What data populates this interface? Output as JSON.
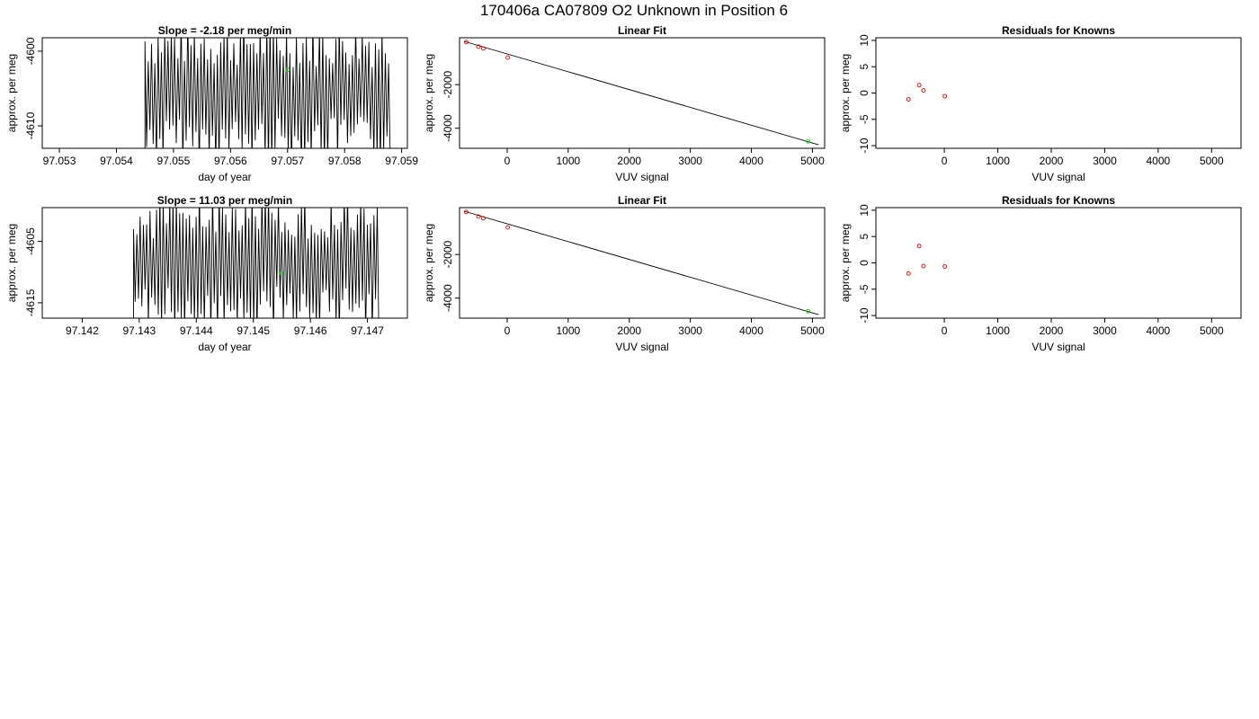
{
  "page_title": "170406a      CA07809   O2 Unknown in Position  6",
  "colors": {
    "line": "#000000",
    "known_points": "#cc0000",
    "unknown_point": "#22cc22",
    "background": "#ffffff"
  },
  "chart_data": [
    {
      "type": "line",
      "title": "Slope =  -2.18  per meg/min",
      "xlabel": "day of year",
      "ylabel": "approx. per meg",
      "xlim": [
        97.0527,
        97.0591
      ],
      "ylim": [
        -4613.0,
        -4598.2
      ],
      "xticks": [
        "97.053",
        "97.054",
        "97.055",
        "97.056",
        "97.057",
        "97.058",
        "97.059"
      ],
      "xtick_values": [
        97.053,
        97.054,
        97.055,
        97.056,
        97.057,
        97.058,
        97.059
      ],
      "yticks": [
        "-4600",
        "-4610"
      ],
      "ytick_values": [
        -4600,
        -4610
      ],
      "series": [
        {
          "x_start": 97.0545,
          "x_end": 97.0588,
          "points": 150,
          "y_center": -4605.5,
          "y_amplitude": 9.5
        }
      ],
      "unknown_point": {
        "x": 97.057,
        "y": -4602.5
      }
    },
    {
      "type": "scatter",
      "title": "Linear Fit",
      "xlabel": "VUV signal",
      "ylabel": "approx. per meg",
      "xlim": [
        -780,
        5200
      ],
      "ylim": [
        -4920,
        150
      ],
      "xticks": [
        "0",
        "1000",
        "2000",
        "3000",
        "4000",
        "5000"
      ],
      "xtick_values": [
        0,
        1000,
        2000,
        3000,
        4000,
        5000
      ],
      "yticks": [
        "-2000",
        "-4000"
      ],
      "ytick_values": [
        -2000,
        -4000
      ],
      "known_points": [
        {
          "x": -670,
          "y": -50
        },
        {
          "x": -470,
          "y": -260
        },
        {
          "x": -390,
          "y": -340
        },
        {
          "x": 10,
          "y": -760
        }
      ],
      "unknown_point": {
        "x": 4930,
        "y": -4600
      },
      "fit_line": {
        "x": [
          -700,
          5100
        ],
        "y": [
          -20,
          -4760
        ]
      }
    },
    {
      "type": "scatter",
      "title": "Residuals for Knowns",
      "xlabel": "VUV signal",
      "ylabel": "approx. per meg",
      "xlim": [
        -1280,
        5550
      ],
      "ylim": [
        -10.5,
        10.5
      ],
      "xticks": [
        "0",
        "1000",
        "2000",
        "3000",
        "4000",
        "5000"
      ],
      "xtick_values": [
        0,
        1000,
        2000,
        3000,
        4000,
        5000
      ],
      "yticks": [
        "10",
        "5",
        "0",
        "-5",
        "-10"
      ],
      "ytick_values": [
        10,
        5,
        0,
        -5,
        -10
      ],
      "known_points": [
        {
          "x": -670,
          "y": -1.2
        },
        {
          "x": -470,
          "y": 1.5
        },
        {
          "x": -390,
          "y": 0.5
        },
        {
          "x": 10,
          "y": -0.6
        }
      ]
    },
    {
      "type": "line",
      "title": "Slope =  11.03  per meg/min",
      "xlabel": "day of year",
      "ylabel": "approx. per meg",
      "xlim": [
        97.1413,
        97.1477
      ],
      "ylim": [
        -4617.5,
        -4599.5
      ],
      "xticks": [
        "97.142",
        "97.143",
        "97.144",
        "97.145",
        "97.146",
        "97.147"
      ],
      "xtick_values": [
        97.142,
        97.143,
        97.144,
        97.145,
        97.146,
        97.147
      ],
      "yticks": [
        "-4605",
        "-4615"
      ],
      "ytick_values": [
        -4605,
        -4615
      ],
      "series": [
        {
          "x_start": 97.1429,
          "x_end": 97.1472,
          "points": 150,
          "y_center": -4608.5,
          "y_amplitude": 11.0
        }
      ],
      "unknown_point": {
        "x": 97.1455,
        "y": -4610.2
      }
    },
    {
      "type": "scatter",
      "title": "Linear Fit",
      "xlabel": "VUV signal",
      "ylabel": "approx. per meg",
      "xlim": [
        -780,
        5200
      ],
      "ylim": [
        -4920,
        150
      ],
      "xticks": [
        "0",
        "1000",
        "2000",
        "3000",
        "4000",
        "5000"
      ],
      "xtick_values": [
        0,
        1000,
        2000,
        3000,
        4000,
        5000
      ],
      "yticks": [
        "-2000",
        "-4000"
      ],
      "ytick_values": [
        -2000,
        -4000
      ],
      "known_points": [
        {
          "x": -670,
          "y": -50
        },
        {
          "x": -470,
          "y": -260
        },
        {
          "x": -390,
          "y": -340
        },
        {
          "x": 10,
          "y": -760
        }
      ],
      "unknown_point": {
        "x": 4930,
        "y": -4600
      },
      "fit_line": {
        "x": [
          -700,
          5100
        ],
        "y": [
          -20,
          -4760
        ]
      }
    },
    {
      "type": "scatter",
      "title": "Residuals for Knowns",
      "xlabel": "VUV signal",
      "ylabel": "approx. per meg",
      "xlim": [
        -1280,
        5550
      ],
      "ylim": [
        -10.5,
        10.5
      ],
      "xticks": [
        "0",
        "1000",
        "2000",
        "3000",
        "4000",
        "5000"
      ],
      "xtick_values": [
        0,
        1000,
        2000,
        3000,
        4000,
        5000
      ],
      "yticks": [
        "10",
        "5",
        "0",
        "-5",
        "-10"
      ],
      "ytick_values": [
        10,
        5,
        0,
        -5,
        -10
      ],
      "known_points": [
        {
          "x": -670,
          "y": -2.0
        },
        {
          "x": -470,
          "y": 3.2
        },
        {
          "x": -390,
          "y": -0.6
        },
        {
          "x": 10,
          "y": -0.7
        }
      ]
    }
  ]
}
